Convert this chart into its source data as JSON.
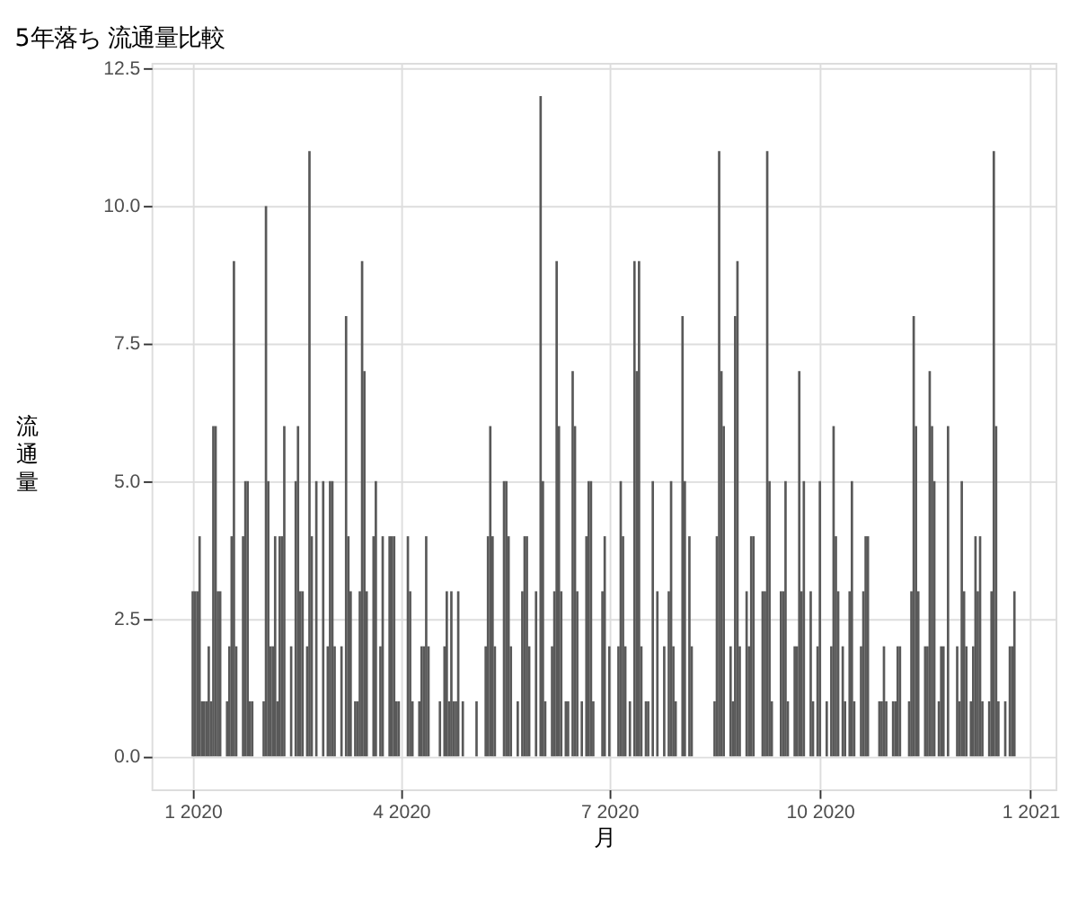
{
  "chart_data": {
    "type": "bar",
    "title": "5年落ち 流通量比較",
    "xlabel": "月",
    "ylabel": "流通量",
    "color": "#595959",
    "grid": true,
    "xlim": [
      "2019-12-14",
      "2021-01-12"
    ],
    "xticks": [
      {
        "value": "2020-01-01",
        "label": "1 2020"
      },
      {
        "value": "2020-04-01",
        "label": "4 2020"
      },
      {
        "value": "2020-07-01",
        "label": "7 2020"
      },
      {
        "value": "2020-10-01",
        "label": "10 2020"
      },
      {
        "value": "2021-01-01",
        "label": "1 2021"
      }
    ],
    "ylim": [
      -0.6,
      12.6
    ],
    "yticks": [
      {
        "value": 0,
        "label": "0.0"
      },
      {
        "value": 2.5,
        "label": "2.5"
      },
      {
        "value": 5,
        "label": "5.0"
      },
      {
        "value": 7.5,
        "label": "7.5"
      },
      {
        "value": 10,
        "label": "10.0"
      },
      {
        "value": 12.5,
        "label": "12.5"
      }
    ],
    "x": [
      "2020-01-01",
      "2020-01-02",
      "2020-01-03",
      "2020-01-04",
      "2020-01-05",
      "2020-01-06",
      "2020-01-07",
      "2020-01-08",
      "2020-01-09",
      "2020-01-10",
      "2020-01-11",
      "2020-01-12",
      "2020-01-13",
      "2020-01-16",
      "2020-01-17",
      "2020-01-18",
      "2020-01-19",
      "2020-01-20",
      "2020-01-23",
      "2020-01-24",
      "2020-01-25",
      "2020-01-26",
      "2020-01-27",
      "2020-02-01",
      "2020-02-02",
      "2020-02-03",
      "2020-02-04",
      "2020-02-05",
      "2020-02-06",
      "2020-02-07",
      "2020-02-08",
      "2020-02-09",
      "2020-02-10",
      "2020-02-13",
      "2020-02-15",
      "2020-02-16",
      "2020-02-17",
      "2020-02-18",
      "2020-02-20",
      "2020-02-21",
      "2020-02-22",
      "2020-02-24",
      "2020-02-27",
      "2020-02-29",
      "2020-03-01",
      "2020-03-02",
      "2020-03-03",
      "2020-03-06",
      "2020-03-08",
      "2020-03-09",
      "2020-03-10",
      "2020-03-12",
      "2020-03-13",
      "2020-03-14",
      "2020-03-15",
      "2020-03-16",
      "2020-03-17",
      "2020-03-20",
      "2020-03-21",
      "2020-03-23",
      "2020-03-24",
      "2020-03-27",
      "2020-03-28",
      "2020-03-29",
      "2020-03-30",
      "2020-03-31",
      "2020-04-04",
      "2020-04-05",
      "2020-04-06",
      "2020-04-09",
      "2020-04-10",
      "2020-04-11",
      "2020-04-12",
      "2020-04-13",
      "2020-04-18",
      "2020-04-20",
      "2020-04-21",
      "2020-04-22",
      "2020-04-23",
      "2020-04-24",
      "2020-04-25",
      "2020-04-26",
      "2020-04-28",
      "2020-05-04",
      "2020-05-08",
      "2020-05-09",
      "2020-05-10",
      "2020-05-11",
      "2020-05-12",
      "2020-05-16",
      "2020-05-17",
      "2020-05-18",
      "2020-05-19",
      "2020-05-22",
      "2020-05-24",
      "2020-05-25",
      "2020-05-26",
      "2020-05-27",
      "2020-05-30",
      "2020-06-01",
      "2020-06-02",
      "2020-06-03",
      "2020-06-06",
      "2020-06-07",
      "2020-06-08",
      "2020-06-09",
      "2020-06-10",
      "2020-06-12",
      "2020-06-13",
      "2020-06-15",
      "2020-06-16",
      "2020-06-17",
      "2020-06-19",
      "2020-06-21",
      "2020-06-22",
      "2020-06-23",
      "2020-06-24",
      "2020-06-28",
      "2020-06-29",
      "2020-07-01",
      "2020-07-05",
      "2020-07-06",
      "2020-07-07",
      "2020-07-08",
      "2020-07-10",
      "2020-07-12",
      "2020-07-13",
      "2020-07-14",
      "2020-07-15",
      "2020-07-17",
      "2020-07-18",
      "2020-07-20",
      "2020-07-22",
      "2020-07-25",
      "2020-07-27",
      "2020-07-28",
      "2020-07-29",
      "2020-07-30",
      "2020-08-02",
      "2020-08-03",
      "2020-08-05",
      "2020-08-06",
      "2020-08-16",
      "2020-08-17",
      "2020-08-18",
      "2020-08-19",
      "2020-08-20",
      "2020-08-23",
      "2020-08-24",
      "2020-08-25",
      "2020-08-26",
      "2020-08-27",
      "2020-08-30",
      "2020-08-31",
      "2020-09-01",
      "2020-09-02",
      "2020-09-06",
      "2020-09-07",
      "2020-09-08",
      "2020-09-09",
      "2020-09-10",
      "2020-09-14",
      "2020-09-15",
      "2020-09-16",
      "2020-09-17",
      "2020-09-20",
      "2020-09-21",
      "2020-09-22",
      "2020-09-23",
      "2020-09-24",
      "2020-09-27",
      "2020-09-28",
      "2020-09-30",
      "2020-10-01",
      "2020-10-04",
      "2020-10-06",
      "2020-10-07",
      "2020-10-08",
      "2020-10-09",
      "2020-10-11",
      "2020-10-12",
      "2020-10-14",
      "2020-10-15",
      "2020-10-16",
      "2020-10-19",
      "2020-10-20",
      "2020-10-21",
      "2020-10-22",
      "2020-10-27",
      "2020-10-28",
      "2020-10-29",
      "2020-10-30",
      "2020-11-02",
      "2020-11-03",
      "2020-11-04",
      "2020-11-05",
      "2020-11-09",
      "2020-11-10",
      "2020-11-11",
      "2020-11-12",
      "2020-11-13",
      "2020-11-16",
      "2020-11-17",
      "2020-11-18",
      "2020-11-19",
      "2020-11-20",
      "2020-11-22",
      "2020-11-23",
      "2020-11-24",
      "2020-11-26",
      "2020-11-30",
      "2020-12-01",
      "2020-12-02",
      "2020-12-03",
      "2020-12-04",
      "2020-12-06",
      "2020-12-07",
      "2020-12-08",
      "2020-12-09",
      "2020-12-10",
      "2020-12-11",
      "2020-12-14",
      "2020-12-15",
      "2020-12-16",
      "2020-12-17",
      "2020-12-18",
      "2020-12-21",
      "2020-12-23",
      "2020-12-24",
      "2020-12-25"
    ],
    "values": [
      3,
      3,
      3,
      4,
      1,
      1,
      1,
      2,
      1,
      6,
      6,
      3,
      3,
      1,
      2,
      4,
      9,
      2,
      4,
      5,
      5,
      1,
      1,
      1,
      10,
      5,
      2,
      2,
      4,
      1,
      4,
      4,
      6,
      2,
      5,
      6,
      3,
      3,
      2,
      11,
      4,
      5,
      5,
      2,
      5,
      5,
      2,
      2,
      8,
      4,
      3,
      1,
      1,
      3,
      9,
      7,
      3,
      4,
      5,
      2,
      4,
      4,
      4,
      4,
      1,
      1,
      4,
      3,
      1,
      1,
      2,
      2,
      4,
      2,
      1,
      2,
      3,
      1,
      3,
      1,
      1,
      3,
      1,
      1,
      2,
      4,
      6,
      4,
      2,
      5,
      5,
      4,
      2,
      1,
      3,
      4,
      4,
      2,
      3,
      12,
      5,
      1,
      2,
      3,
      9,
      6,
      3,
      1,
      1,
      7,
      6,
      3,
      1,
      4,
      5,
      5,
      1,
      3,
      4,
      2,
      2,
      5,
      4,
      2,
      1,
      9,
      7,
      9,
      2,
      1,
      1,
      5,
      3,
      2,
      3,
      5,
      2,
      1,
      8,
      5,
      4,
      2,
      1,
      4,
      11,
      7,
      6,
      2,
      1,
      8,
      9,
      2,
      3,
      2,
      4,
      4,
      3,
      3,
      11,
      5,
      1,
      3,
      3,
      5,
      1,
      2,
      2,
      7,
      3,
      5,
      3,
      1,
      2,
      5,
      1,
      2,
      6,
      4,
      3,
      2,
      1,
      3,
      5,
      1,
      2,
      3,
      4,
      4,
      1,
      1,
      2,
      1,
      1,
      1,
      2,
      2,
      1,
      3,
      8,
      6,
      3,
      2,
      2,
      7,
      6,
      5,
      1,
      2,
      2,
      6,
      2,
      1,
      5,
      3,
      2,
      1,
      2,
      4,
      3,
      4,
      1,
      1,
      3,
      11,
      6,
      1,
      1,
      2,
      2,
      3
    ]
  }
}
